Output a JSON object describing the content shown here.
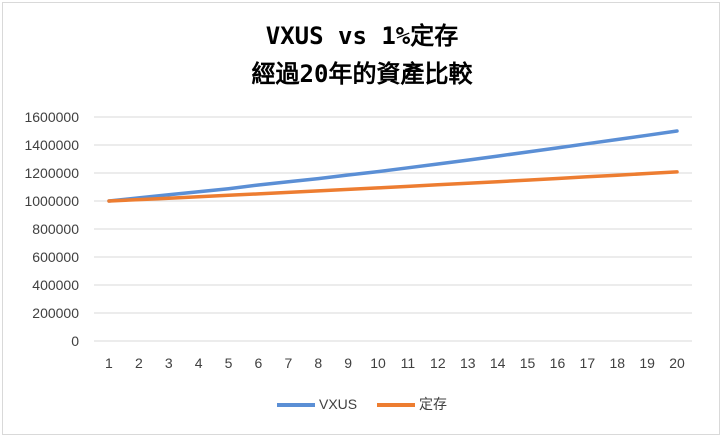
{
  "chart_data": {
    "type": "line",
    "title_line1": "VXUS vs 1%定存",
    "title_line2": "經過20年的資產比較",
    "categories": [
      "1",
      "2",
      "3",
      "4",
      "5",
      "6",
      "7",
      "8",
      "9",
      "10",
      "11",
      "12",
      "13",
      "14",
      "15",
      "16",
      "17",
      "18",
      "19",
      "20"
    ],
    "ylim": [
      0,
      1600000
    ],
    "yticks": [
      "0",
      "200000",
      "400000",
      "600000",
      "800000",
      "1000000",
      "1200000",
      "1400000",
      "1600000"
    ],
    "grid": true,
    "legend_position": "bottom",
    "series": [
      {
        "name": "VXUS",
        "color": "#5b8fd5",
        "values": [
          1000000,
          1022000,
          1044000,
          1066000,
          1088000,
          1114000,
          1137000,
          1160000,
          1186000,
          1210000,
          1237000,
          1264000,
          1292000,
          1321000,
          1350000,
          1379000,
          1409000,
          1439000,
          1469000,
          1500000
        ]
      },
      {
        "name": "定存",
        "color": "#ed7d31",
        "values": [
          1000000,
          1010000,
          1020100,
          1030301,
          1040604,
          1051010,
          1061520,
          1072135,
          1082857,
          1093685,
          1104622,
          1115668,
          1126825,
          1138093,
          1149474,
          1160969,
          1172579,
          1184304,
          1196147,
          1208109
        ]
      }
    ]
  }
}
